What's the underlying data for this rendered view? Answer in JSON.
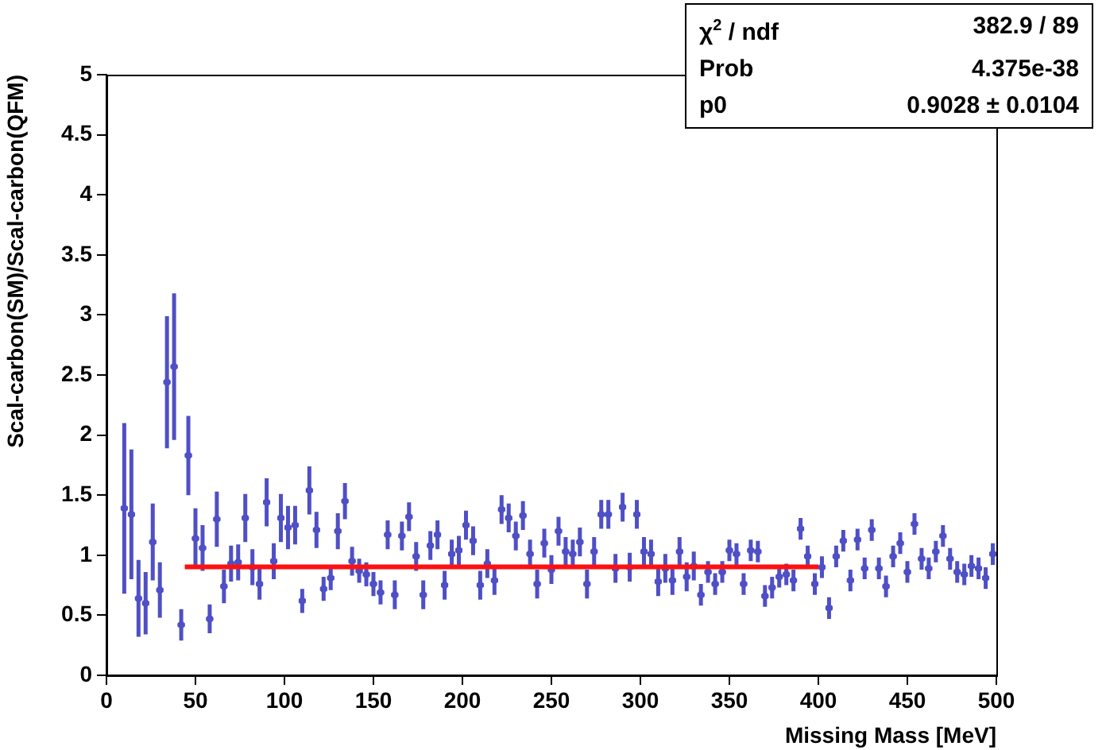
{
  "chart_data": {
    "type": "scatter",
    "xlabel": "Missing Mass [MeV]",
    "ylabel": "Scal-carbon(SM)/Scal-carbon(QFM)",
    "xlim": [
      0,
      500
    ],
    "xticks": [
      0,
      50,
      100,
      150,
      200,
      250,
      300,
      350,
      400,
      450,
      500
    ],
    "ylim": [
      0,
      5
    ],
    "yticks": [
      0,
      0.5,
      1,
      1.5,
      2,
      2.5,
      3,
      3.5,
      4,
      4.5,
      5
    ],
    "grid": false,
    "legend": false,
    "annotations": [
      "χ$^{2}$ / ndf",
      "382.9 / 89",
      "Prob",
      "4.375e-38",
      "p0",
      "0.9028 ± 0.0104"
    ],
    "series": [
      {
        "color": "#4f4fc6",
        "marker": "circle",
        "x": [
          10,
          14,
          18,
          22,
          26,
          30,
          34,
          38,
          42,
          46,
          50,
          54,
          58,
          62,
          66,
          70,
          74,
          78,
          82,
          86,
          90,
          94,
          98,
          102,
          106,
          110,
          114,
          118,
          122,
          126,
          130,
          134,
          138,
          142,
          146,
          150,
          154,
          158,
          162,
          166,
          170,
          174,
          178,
          182,
          186,
          190,
          194,
          198,
          202,
          206,
          210,
          214,
          218,
          222,
          226,
          230,
          234,
          238,
          242,
          246,
          250,
          254,
          258,
          262,
          266,
          270,
          274,
          278,
          282,
          286,
          290,
          294,
          298,
          302,
          306,
          310,
          314,
          318,
          322,
          326,
          330,
          334,
          338,
          342,
          346,
          350,
          354,
          358,
          362,
          366,
          370,
          374,
          378,
          382,
          386,
          390,
          394,
          398,
          402,
          406,
          410,
          414,
          418,
          422,
          426,
          430,
          434,
          438,
          442,
          446,
          450,
          454,
          458,
          462,
          466,
          470,
          474,
          478,
          482,
          486,
          490,
          494,
          498
        ],
        "values": [
          1.39,
          1.34,
          0.64,
          0.6,
          1.11,
          0.71,
          2.44,
          2.57,
          0.42,
          1.83,
          1.14,
          1.06,
          0.47,
          1.3,
          0.74,
          0.93,
          0.94,
          1.31,
          0.9,
          0.76,
          1.44,
          0.95,
          1.31,
          1.23,
          1.25,
          0.62,
          1.54,
          1.21,
          0.72,
          0.81,
          1.2,
          1.45,
          0.95,
          0.87,
          0.84,
          0.76,
          0.69,
          1.17,
          0.67,
          1.16,
          1.32,
          0.99,
          0.67,
          1.08,
          1.17,
          0.75,
          1.01,
          1.04,
          1.25,
          1.12,
          0.75,
          0.93,
          0.79,
          1.38,
          1.31,
          1.16,
          1.33,
          1.01,
          0.76,
          1.1,
          0.88,
          1.2,
          1.03,
          1.01,
          1.11,
          0.76,
          1.03,
          1.34,
          1.34,
          0.89,
          1.4,
          0.9,
          1.34,
          1.03,
          1.01,
          0.78,
          0.89,
          0.79,
          1.03,
          0.82,
          0.91,
          0.67,
          0.86,
          0.76,
          0.86,
          1.04,
          1.01,
          0.76,
          1.04,
          1.03,
          0.66,
          0.73,
          0.82,
          0.84,
          0.79,
          1.22,
          0.99,
          0.76,
          0.9,
          0.56,
          0.99,
          1.12,
          0.79,
          1.13,
          0.89,
          1.21,
          0.89,
          0.74,
          0.99,
          1.1,
          0.86,
          1.26,
          0.97,
          0.89,
          1.03,
          1.16,
          0.97,
          0.86,
          0.84,
          0.91,
          0.89,
          0.81,
          1.01
        ],
        "errors": [
          0.71,
          0.54,
          0.32,
          0.26,
          0.32,
          0.23,
          0.55,
          0.61,
          0.13,
          0.33,
          0.25,
          0.19,
          0.12,
          0.23,
          0.14,
          0.15,
          0.15,
          0.2,
          0.15,
          0.13,
          0.2,
          0.15,
          0.2,
          0.18,
          0.16,
          0.1,
          0.2,
          0.15,
          0.1,
          0.1,
          0.15,
          0.15,
          0.12,
          0.1,
          0.1,
          0.1,
          0.1,
          0.12,
          0.12,
          0.12,
          0.12,
          0.12,
          0.12,
          0.12,
          0.12,
          0.12,
          0.12,
          0.12,
          0.12,
          0.12,
          0.12,
          0.12,
          0.12,
          0.12,
          0.12,
          0.12,
          0.12,
          0.12,
          0.12,
          0.12,
          0.12,
          0.12,
          0.12,
          0.12,
          0.12,
          0.12,
          0.12,
          0.12,
          0.12,
          0.12,
          0.12,
          0.12,
          0.12,
          0.12,
          0.12,
          0.12,
          0.12,
          0.12,
          0.12,
          0.12,
          0.12,
          0.09,
          0.09,
          0.09,
          0.09,
          0.09,
          0.09,
          0.09,
          0.09,
          0.09,
          0.09,
          0.09,
          0.09,
          0.09,
          0.09,
          0.09,
          0.09,
          0.09,
          0.09,
          0.09,
          0.09,
          0.09,
          0.09,
          0.09,
          0.09,
          0.09,
          0.09,
          0.09,
          0.09,
          0.09,
          0.09,
          0.09,
          0.09,
          0.09,
          0.09,
          0.09,
          0.09,
          0.09,
          0.09,
          0.09,
          0.09,
          0.09,
          0.09
        ],
        "xerrors": [
          2,
          2,
          2,
          2,
          2,
          2,
          2,
          2,
          2,
          2,
          2,
          2,
          2,
          2,
          2,
          2,
          2,
          2,
          2,
          2,
          2,
          2,
          2,
          2,
          2,
          2,
          2,
          2,
          2,
          2,
          2,
          2,
          2,
          2,
          2,
          2,
          2,
          2,
          2,
          2,
          2,
          2,
          2,
          2,
          2,
          2,
          2,
          2,
          2,
          2,
          2,
          2,
          2,
          2,
          2,
          2,
          2,
          2,
          2,
          2,
          2,
          2,
          2,
          2,
          2,
          2,
          2,
          2,
          2,
          2,
          2,
          2,
          2,
          2,
          2,
          2,
          2,
          2,
          2,
          2,
          2,
          2,
          2,
          2,
          2,
          2,
          2,
          2,
          2,
          2,
          2,
          2,
          2,
          2,
          2,
          2,
          2,
          2,
          2,
          2,
          2,
          2,
          2,
          2,
          2,
          2,
          2,
          2,
          2,
          2,
          2,
          2,
          2,
          2,
          2,
          2,
          2,
          2,
          2,
          2,
          2,
          2,
          2
        ]
      },
      {
        "type": "line",
        "marker": "none",
        "color": "#ff1010",
        "x": [
          44,
          400
        ],
        "values": [
          0.9028,
          0.9028
        ]
      }
    ]
  }
}
